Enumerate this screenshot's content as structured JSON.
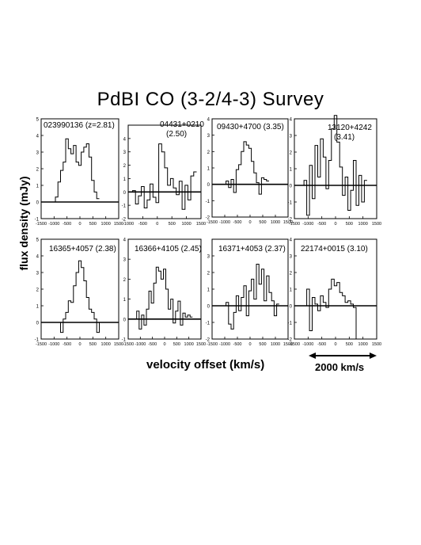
{
  "figure": {
    "title": "PdBI  CO (3-2/4-3) Survey",
    "ylabel": "flux density (mJy)",
    "xlabel": "velocity offset (km/s)",
    "scale_bar_label": "2000 km/s"
  },
  "chart_data": [
    {
      "type": "line",
      "step": true,
      "title": "023990136 (z=2.81)",
      "xlim": [
        -1500,
        1500
      ],
      "ylim": [
        -1,
        5
      ],
      "xticks": [
        -1500,
        -1000,
        -500,
        0,
        500,
        1000,
        1500
      ],
      "yticks": [
        -1,
        0,
        1,
        2,
        3,
        4,
        5
      ],
      "x": [
        -900,
        -800,
        -700,
        -600,
        -500,
        -400,
        -300,
        -200,
        -100,
        0,
        100,
        200,
        300,
        400,
        500,
        600,
        700
      ],
      "y": [
        0.3,
        1.2,
        1.9,
        2.4,
        3.8,
        3.2,
        2.9,
        3.4,
        2.4,
        2.2,
        3.0,
        3.3,
        3.5,
        2.7,
        1.3,
        0.6,
        0.2
      ]
    },
    {
      "type": "line",
      "step": true,
      "title": "04431+0210 (2.50)",
      "xlim": [
        -1000,
        1500
      ],
      "ylim": [
        -2,
        5
      ],
      "xticks": [
        -1000,
        -500,
        0,
        500,
        1000,
        1500
      ],
      "yticks": [
        -2,
        -1,
        0,
        1,
        2,
        3,
        4
      ],
      "x": [
        -800,
        -700,
        -600,
        -500,
        -400,
        -300,
        -200,
        -100,
        0,
        100,
        200,
        300,
        400,
        500,
        600,
        700,
        800,
        900,
        1000,
        1100,
        1200,
        1300
      ],
      "y": [
        0.1,
        -0.9,
        -0.3,
        0.4,
        -1.2,
        -0.6,
        0.6,
        -0.4,
        -0.8,
        3.6,
        3.0,
        1.8,
        0.5,
        1.0,
        0.3,
        -0.2,
        0.8,
        -1.3,
        0.5,
        -0.6,
        1.2,
        1.5
      ]
    },
    {
      "type": "line",
      "step": true,
      "title": "09430+4700 (3.35)",
      "xlim": [
        -1500,
        1500
      ],
      "ylim": [
        -2,
        4
      ],
      "xticks": [
        -1500,
        -1000,
        -500,
        0,
        500,
        1000,
        1500
      ],
      "yticks": [
        -2,
        -1,
        0,
        1,
        2,
        3,
        4
      ],
      "x": [
        -900,
        -800,
        -700,
        -600,
        -500,
        -400,
        -300,
        -200,
        -100,
        0,
        100,
        200,
        300,
        400,
        500,
        600,
        700
      ],
      "y": [
        0.2,
        -0.2,
        0.3,
        -0.5,
        0.9,
        1.2,
        2.0,
        2.6,
        2.4,
        2.2,
        1.4,
        0.7,
        0.1,
        -0.6,
        0.4,
        0.3,
        0.2
      ]
    },
    {
      "type": "line",
      "step": true,
      "title": "13120+4242 (3.41)",
      "xlim": [
        -1500,
        1500
      ],
      "ylim": [
        -2,
        4
      ],
      "xticks": [
        -1500,
        -1000,
        -500,
        0,
        500,
        1000,
        1500
      ],
      "yticks": [
        -2,
        -1,
        0,
        1,
        2,
        3,
        4
      ],
      "x": [
        -1100,
        -1000,
        -900,
        -800,
        -700,
        -600,
        -500,
        -400,
        -300,
        -200,
        -100,
        0,
        100,
        200,
        300,
        400,
        500,
        600,
        700,
        800,
        900,
        1000,
        1100
      ],
      "y": [
        0.3,
        -1.8,
        1.2,
        -0.8,
        2.4,
        0.5,
        2.8,
        1.7,
        -0.2,
        1.5,
        3.4,
        4.2,
        2.6,
        1.1,
        -0.6,
        0.5,
        -1.5,
        -0.3,
        1.5,
        -1.2,
        0.6,
        -1.0,
        0.3
      ]
    },
    {
      "type": "line",
      "step": true,
      "title": "16365+4057 (2.38)",
      "xlim": [
        -1500,
        1500
      ],
      "ylim": [
        -1,
        5
      ],
      "xticks": [
        -1500,
        -1000,
        -500,
        0,
        500,
        1000,
        1500
      ],
      "yticks": [
        -1,
        0,
        1,
        2,
        3,
        4,
        5
      ],
      "x": [
        -700,
        -600,
        -500,
        -400,
        -300,
        -200,
        -100,
        0,
        100,
        200,
        300,
        400,
        500,
        600,
        700,
        800
      ],
      "y": [
        -0.6,
        0.2,
        0.6,
        1.3,
        1.2,
        2.2,
        3.0,
        3.7,
        3.3,
        2.5,
        1.5,
        0.8,
        0.6,
        0.2,
        -0.6,
        0.0
      ]
    },
    {
      "type": "line",
      "step": true,
      "title": "16366+4105 (2.45)",
      "xlim": [
        -1500,
        1500
      ],
      "ylim": [
        -1,
        4
      ],
      "xticks": [
        -1500,
        -1000,
        -500,
        0,
        500,
        1000,
        1500
      ],
      "yticks": [
        -1,
        0,
        1,
        2,
        3,
        4
      ],
      "x": [
        -1100,
        -1000,
        -900,
        -800,
        -700,
        -600,
        -500,
        -400,
        -300,
        -200,
        -100,
        0,
        100,
        200,
        300,
        400,
        500,
        600,
        700,
        800,
        900,
        1000,
        1100
      ],
      "y": [
        0.4,
        -0.5,
        0.2,
        -0.3,
        0.5,
        1.4,
        0.8,
        1.8,
        2.6,
        2.4,
        2.0,
        2.5,
        1.5,
        0.5,
        1.0,
        -0.2,
        0.4,
        0.9,
        -0.3,
        0.3,
        0.1,
        0.2,
        0.1
      ]
    },
    {
      "type": "line",
      "step": true,
      "title": "16371+4053 (2.37)",
      "xlim": [
        -1500,
        1500
      ],
      "ylim": [
        -2,
        4
      ],
      "xticks": [
        -1500,
        -1000,
        -500,
        0,
        500,
        1000,
        1500
      ],
      "yticks": [
        -2,
        -1,
        0,
        1,
        2,
        3
      ],
      "x": [
        -900,
        -800,
        -700,
        -600,
        -500,
        -400,
        -300,
        -200,
        -100,
        0,
        100,
        200,
        300,
        400,
        500,
        600,
        700,
        800,
        900,
        1000,
        1100
      ],
      "y": [
        0.2,
        -1.1,
        -1.4,
        -0.4,
        0.6,
        -0.3,
        0.5,
        1.2,
        -0.6,
        0.9,
        1.6,
        0.4,
        2.5,
        1.3,
        2.2,
        0.3,
        1.8,
        0.8,
        0.3,
        -0.6,
        0.1
      ]
    },
    {
      "type": "line",
      "step": true,
      "title": "22174+0015 (3.10)",
      "xlim": [
        -1500,
        1500
      ],
      "ylim": [
        -2,
        4
      ],
      "xticks": [
        -1500,
        -1000,
        -500,
        0,
        500,
        1000,
        1500
      ],
      "yticks": [
        -2,
        -1,
        0,
        1,
        2,
        3,
        4
      ],
      "x": [
        -1000,
        -900,
        -800,
        -700,
        -600,
        -500,
        -400,
        -300,
        -200,
        -100,
        0,
        100,
        200,
        300,
        400,
        500,
        600,
        700,
        800
      ],
      "y": [
        1.0,
        -1.5,
        0.5,
        0.1,
        -0.3,
        0.6,
        0.2,
        -0.1,
        1.0,
        1.6,
        1.2,
        1.4,
        0.8,
        0.6,
        0.2,
        0.3,
        0.1,
        -0.1,
        -2.0
      ]
    }
  ]
}
